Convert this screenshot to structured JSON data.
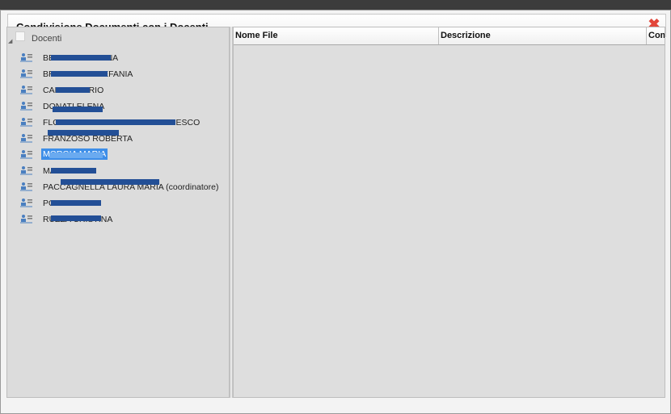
{
  "dialog": {
    "title": "Condivisione Documenti con i Docenti",
    "close_symbol": "✖"
  },
  "tree": {
    "root_label": "Docenti",
    "items": [
      {
        "label": "BELLATI CRISTINA",
        "selected": false
      },
      {
        "label": "BRUSCHINI STEFANIA",
        "selected": false
      },
      {
        "label": "CAREM MARIO",
        "selected": false
      },
      {
        "label": "DONATI ELENA",
        "selected": false
      },
      {
        "label": "FLORIDIA MARCO ROSSI FRANCESCO",
        "selected": false
      },
      {
        "label": "FRANZOSO ROBERTA",
        "selected": false
      },
      {
        "label": "MORGIA MARIA",
        "selected": true
      },
      {
        "label": "MAZZI SIEDA",
        "selected": false
      },
      {
        "label": "PACCAGNELLA LAURA MARIA (coordinatore)",
        "selected": false
      },
      {
        "label": "PORZIO ANNA",
        "selected": false
      },
      {
        "label": "RUZZA CRISTINA",
        "selected": false
      }
    ]
  },
  "grid": {
    "columns": [
      "Nome File",
      "Descrizione",
      "Com"
    ]
  },
  "colors": {
    "selection": "#3d8ee8",
    "redaction": "#234f96",
    "close": "#e2463a"
  }
}
